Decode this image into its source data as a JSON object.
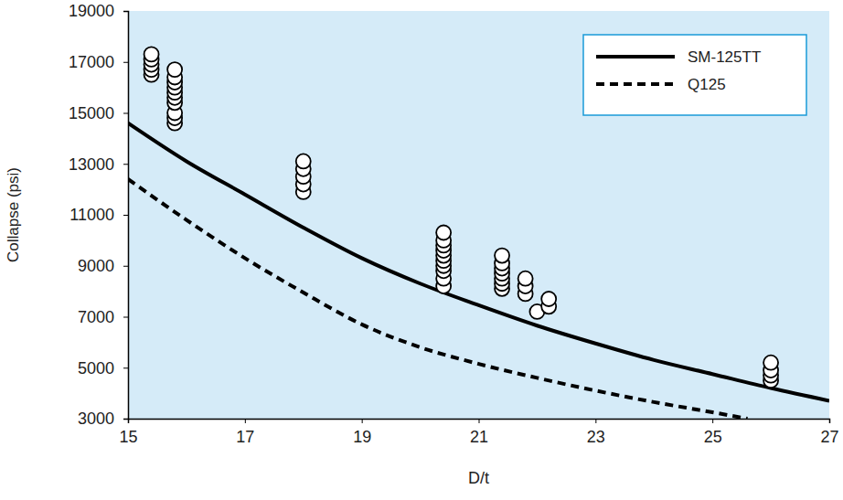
{
  "chart_data": {
    "type": "scatter",
    "x_label": "D/t",
    "y_label": "Collapse (psi)",
    "xlim": [
      15,
      27
    ],
    "ylim": [
      3000,
      19000
    ],
    "xticks": [
      15,
      17,
      19,
      21,
      23,
      25,
      27
    ],
    "yticks": [
      3000,
      5000,
      7000,
      9000,
      11000,
      13000,
      15000,
      17000,
      19000
    ],
    "grid": false,
    "legend": "upper right",
    "series": [
      {
        "name": "SM-125TT",
        "type": "line",
        "line_style": "solid",
        "color": "#000000",
        "x": [
          15,
          16,
          17,
          18,
          19,
          20,
          21,
          22,
          23,
          24,
          25,
          26,
          27
        ],
        "values": [
          14600,
          13100,
          11800,
          10500,
          9300,
          8300,
          7450,
          6650,
          5950,
          5300,
          4750,
          4200,
          3700
        ]
      },
      {
        "name": "Q125",
        "type": "line",
        "line_style": "dashed",
        "color": "#000000",
        "x": [
          15,
          16,
          17,
          18,
          19,
          20,
          21,
          22,
          23,
          24,
          25,
          25.6
        ],
        "values": [
          12400,
          10800,
          9300,
          7950,
          6700,
          5800,
          5150,
          4600,
          4100,
          3650,
          3250,
          3000
        ]
      },
      {
        "type": "scatter",
        "marker": "circle",
        "color": "#000000",
        "x": [
          15.4,
          15.4,
          15.4,
          15.4,
          15.4,
          15.8,
          15.8,
          15.8,
          15.8,
          15.8,
          15.8,
          15.8,
          15.8,
          15.8,
          15.8,
          18.0,
          18.0,
          18.0,
          18.0,
          18.0,
          20.4,
          20.4,
          20.4,
          20.4,
          20.4,
          20.4,
          20.4,
          20.4,
          20.4,
          20.4,
          21.4,
          21.4,
          21.4,
          21.4,
          21.4,
          21.4,
          21.4,
          21.8,
          21.8,
          21.8,
          22.0,
          22.2,
          22.2,
          26.0,
          26.0,
          26.0,
          26.0
        ],
        "values": [
          16500,
          16700,
          16900,
          17100,
          17300,
          14600,
          14800,
          15000,
          15400,
          15600,
          15800,
          16000,
          16200,
          16400,
          16700,
          11900,
          12200,
          12500,
          12800,
          13100,
          8200,
          8500,
          8800,
          9000,
          9200,
          9400,
          9600,
          9800,
          10000,
          10300,
          8100,
          8300,
          8500,
          8700,
          8900,
          9100,
          9400,
          7900,
          8200,
          8500,
          7200,
          7400,
          7700,
          4500,
          4700,
          4900,
          5200
        ]
      }
    ]
  }
}
